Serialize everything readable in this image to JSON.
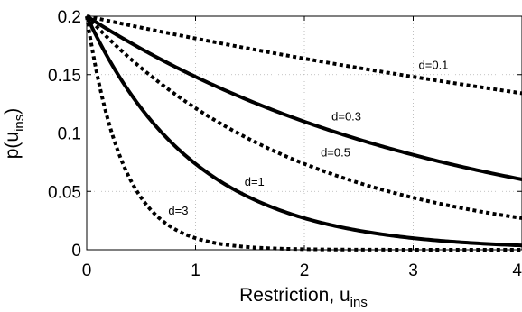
{
  "chart_data": {
    "type": "line",
    "xlabel": "Restriction, u",
    "xlabel_sub": "ins",
    "ylabel": "p(u",
    "ylabel_sub": "ins",
    "ylabel_close": ")",
    "xlim": [
      0,
      4
    ],
    "ylim": [
      0,
      0.2
    ],
    "x_ticks": [
      0,
      1,
      2,
      3,
      4
    ],
    "x_tick_labels": [
      "0",
      "1",
      "2",
      "3",
      "4"
    ],
    "y_ticks": [
      0,
      0.05,
      0.1,
      0.15,
      0.2
    ],
    "y_tick_labels": [
      "0",
      "0.05",
      "0.1",
      "0.15",
      "0.2"
    ],
    "grid": true,
    "formula": "p(u) = 0.2 * exp(-d * u)",
    "series": [
      {
        "label": "d=0.1",
        "d": 0.1,
        "style": "dotted",
        "label_at": [
          3.05,
          0.155
        ]
      },
      {
        "label": "d=0.3",
        "d": 0.3,
        "style": "solid",
        "label_at": [
          2.25,
          0.111
        ]
      },
      {
        "label": "d=0.5",
        "d": 0.5,
        "style": "dotted",
        "label_at": [
          2.15,
          0.08
        ]
      },
      {
        "label": "d=1",
        "d": 1,
        "style": "solid",
        "label_at": [
          1.45,
          0.055
        ]
      },
      {
        "label": "d=3",
        "d": 3,
        "style": "dotted",
        "label_at": [
          0.75,
          0.03
        ]
      }
    ]
  }
}
